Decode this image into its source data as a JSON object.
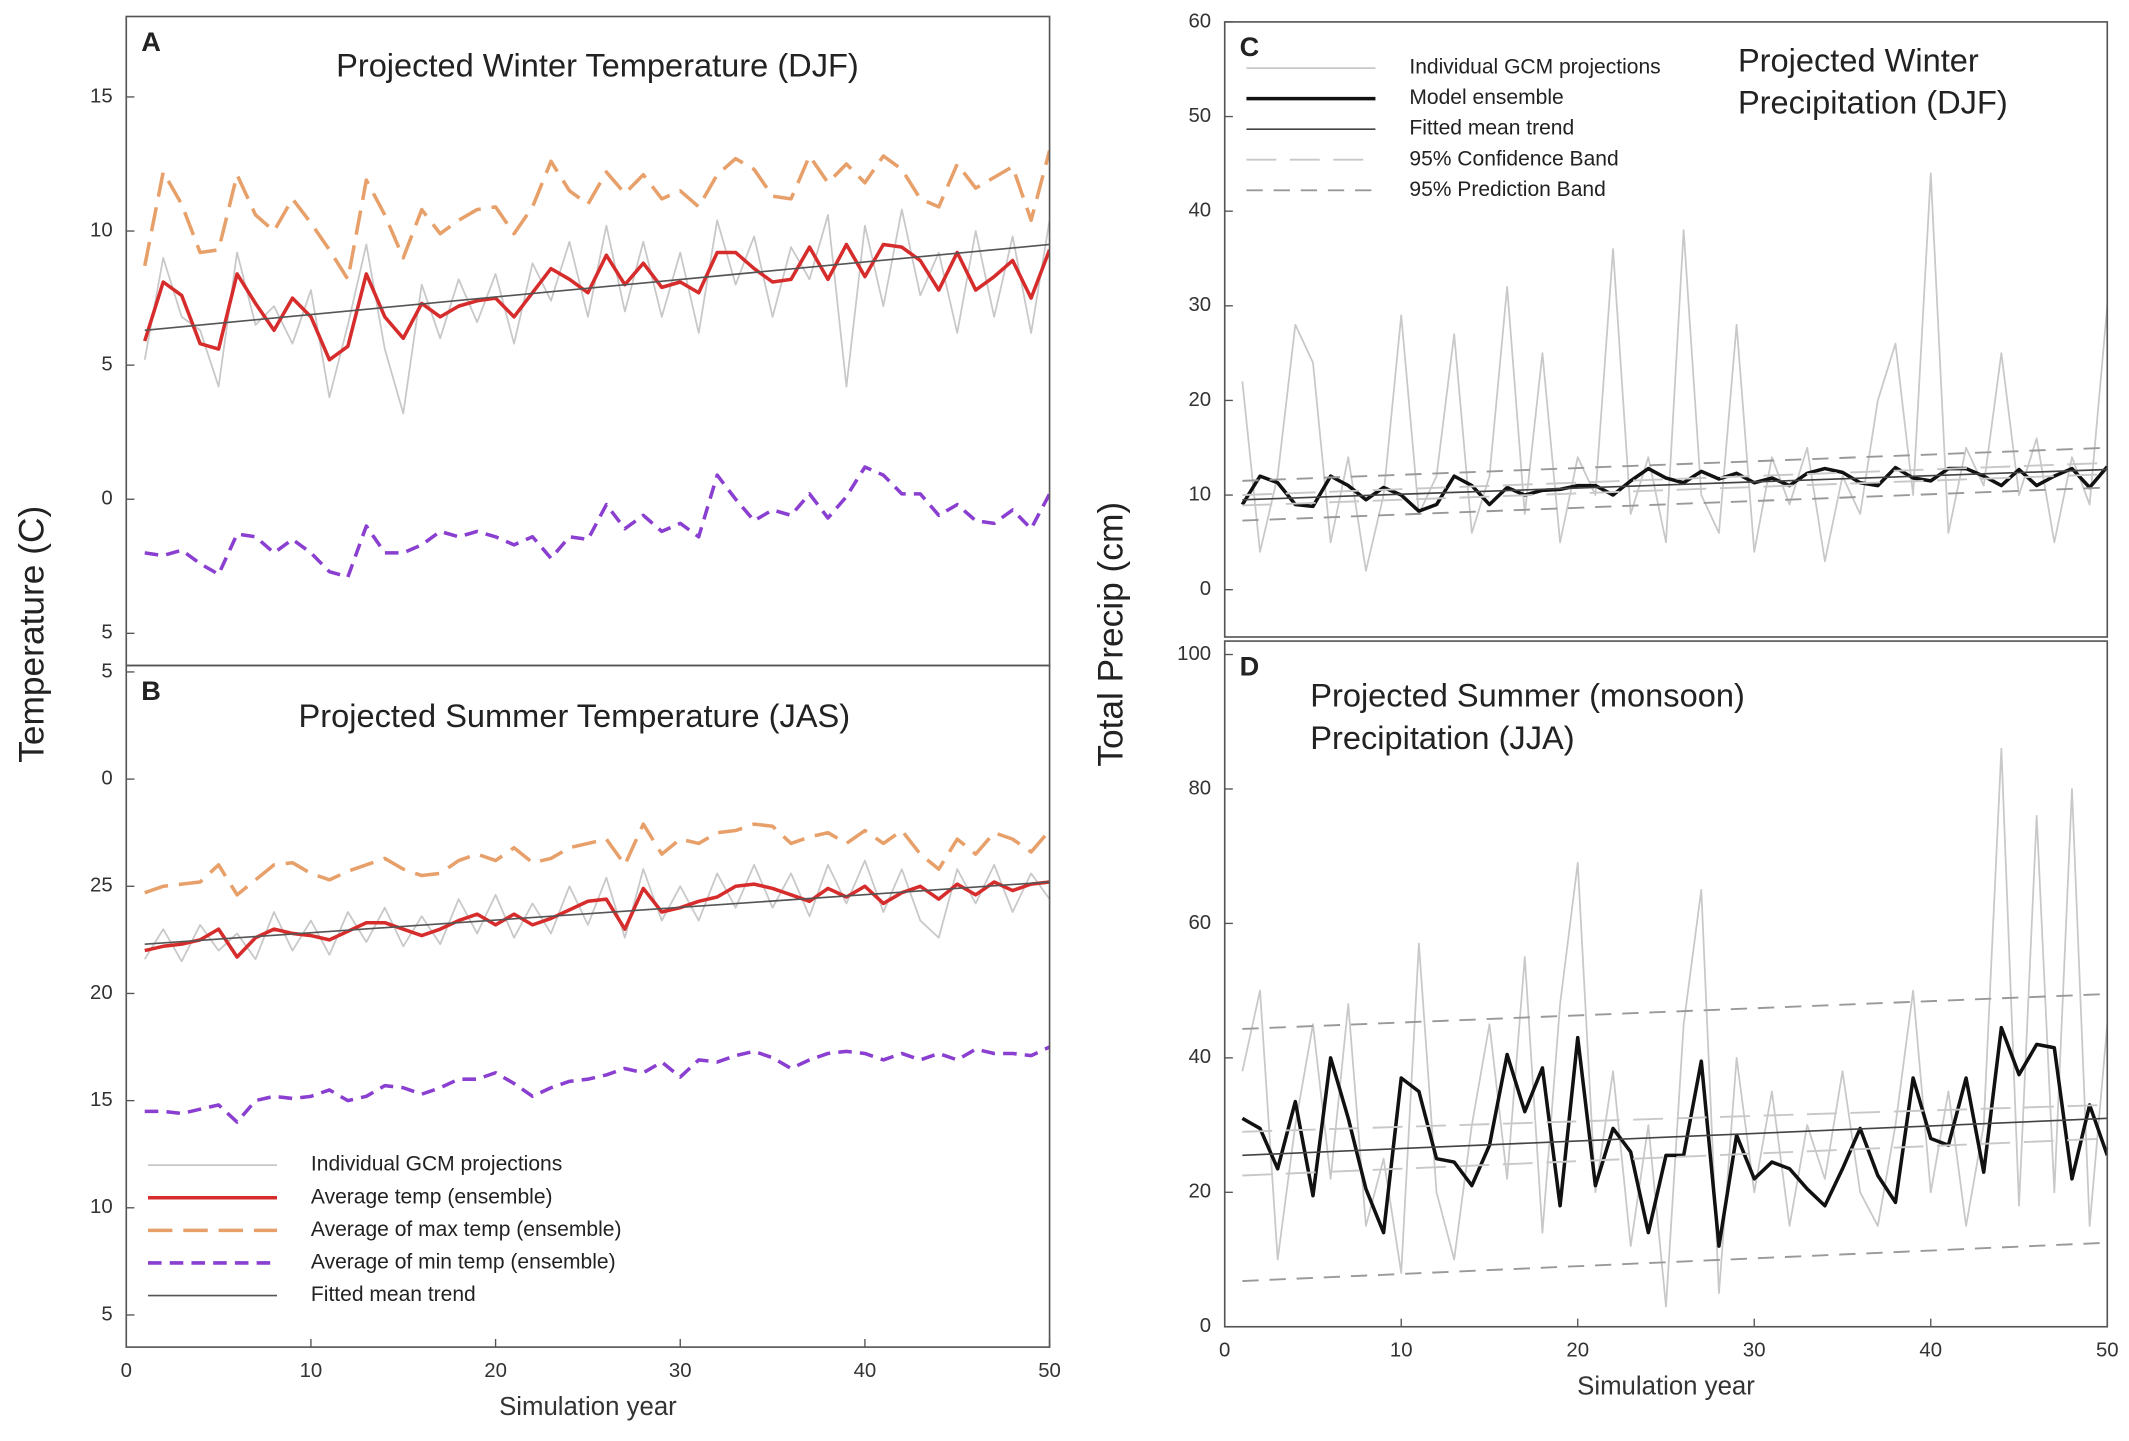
{
  "chart_data": [
    {
      "type": "line",
      "label": "A",
      "title": [
        "Projected Winter Temperature (DJF)"
      ],
      "ylabel": "Temperature (C)",
      "xlim": [
        0,
        50
      ],
      "ylim": [
        -6.2,
        18
      ],
      "yticks": [
        {
          "value": -5,
          "label": "5"
        },
        0,
        5,
        10,
        15
      ],
      "x": [
        1,
        2,
        3,
        4,
        5,
        6,
        7,
        8,
        9,
        10,
        11,
        12,
        13,
        14,
        15,
        16,
        17,
        18,
        19,
        20,
        21,
        22,
        23,
        24,
        25,
        26,
        27,
        28,
        29,
        30,
        31,
        32,
        33,
        34,
        35,
        36,
        37,
        38,
        39,
        40,
        41,
        42,
        43,
        44,
        45,
        46,
        47,
        48,
        49,
        50
      ],
      "series": [
        {
          "style": "individual",
          "color": "#c8c8c8",
          "values": [
            5.2,
            9.0,
            6.8,
            6.3,
            4.2,
            9.2,
            6.5,
            7.2,
            5.8,
            7.8,
            3.8,
            6.5,
            9.5,
            5.6,
            3.2,
            8.0,
            6.0,
            8.2,
            6.6,
            8.4,
            5.8,
            8.8,
            7.4,
            9.6,
            6.8,
            10.2,
            7.0,
            9.6,
            6.8,
            9.2,
            6.2,
            10.4,
            8.0,
            9.8,
            6.8,
            9.4,
            8.2,
            10.6,
            4.2,
            10.2,
            7.2,
            10.8,
            7.6,
            9.2,
            6.2,
            10.0,
            6.8,
            9.8,
            6.2,
            10.4
          ]
        },
        {
          "style": "ensemble",
          "color": "#d62c2c",
          "values": [
            5.9,
            8.1,
            7.6,
            5.8,
            5.6,
            8.4,
            7.3,
            6.3,
            7.5,
            6.8,
            5.2,
            5.7,
            8.4,
            6.8,
            6.0,
            7.3,
            6.8,
            7.2,
            7.4,
            7.5,
            6.8,
            7.7,
            8.6,
            8.2,
            7.7,
            9.1,
            8.0,
            8.8,
            7.9,
            8.1,
            7.7,
            9.2,
            9.2,
            8.6,
            8.1,
            8.2,
            9.4,
            8.2,
            9.5,
            8.3,
            9.5,
            9.4,
            8.9,
            7.8,
            9.2,
            7.8,
            8.3,
            8.9,
            7.5,
            9.3
          ]
        },
        {
          "style": "ensemble",
          "dash": "long",
          "color": "#e8a06a",
          "values": [
            8.7,
            12.2,
            11.0,
            9.2,
            9.3,
            12.1,
            10.6,
            10.0,
            11.2,
            10.3,
            9.3,
            8.2,
            11.9,
            10.6,
            9.0,
            10.8,
            9.9,
            10.4,
            10.8,
            10.9,
            9.9,
            10.9,
            12.6,
            11.5,
            11.0,
            12.2,
            11.4,
            12.1,
            11.2,
            11.5,
            10.9,
            12.1,
            12.7,
            12.3,
            11.3,
            11.2,
            12.8,
            11.8,
            12.5,
            11.8,
            12.8,
            12.3,
            11.2,
            10.9,
            12.5,
            11.6,
            12.0,
            12.4,
            10.4,
            13.0
          ]
        },
        {
          "style": "ensemble",
          "dash": "short",
          "color": "#8a3fd1",
          "values": [
            -2.0,
            -2.1,
            -1.9,
            -2.4,
            -2.8,
            -1.3,
            -1.4,
            -2.0,
            -1.5,
            -2.0,
            -2.7,
            -2.9,
            -1.0,
            -2.0,
            -2.0,
            -1.7,
            -1.2,
            -1.4,
            -1.2,
            -1.4,
            -1.7,
            -1.4,
            -2.2,
            -1.4,
            -1.5,
            -0.2,
            -1.1,
            -0.6,
            -1.2,
            -0.9,
            -1.4,
            0.9,
            0.0,
            -0.8,
            -0.4,
            -0.6,
            0.2,
            -0.7,
            0.1,
            1.2,
            0.9,
            0.2,
            0.2,
            -0.6,
            -0.2,
            -0.8,
            -0.9,
            -0.4,
            -1.1,
            0.2
          ]
        },
        {
          "style": "trend",
          "color": "#555555",
          "x": [
            1,
            50
          ],
          "values": [
            6.3,
            9.5
          ]
        }
      ]
    },
    {
      "type": "line",
      "label": "B",
      "title": [
        "Projected Summer Temperature (JAS)"
      ],
      "xlabel": "Simulation year",
      "xlim": [
        0,
        50
      ],
      "ylim": [
        3.5,
        35.3
      ],
      "xticks": [
        0,
        10,
        20,
        30,
        40,
        50
      ],
      "yticks": [
        5,
        10,
        15,
        20,
        25,
        {
          "value": 30,
          "label": "0"
        },
        {
          "value": 35,
          "label": "5"
        }
      ],
      "legend": "lower left",
      "x": [
        1,
        2,
        3,
        4,
        5,
        6,
        7,
        8,
        9,
        10,
        11,
        12,
        13,
        14,
        15,
        16,
        17,
        18,
        19,
        20,
        21,
        22,
        23,
        24,
        25,
        26,
        27,
        28,
        29,
        30,
        31,
        32,
        33,
        34,
        35,
        36,
        37,
        38,
        39,
        40,
        41,
        42,
        43,
        44,
        45,
        46,
        47,
        48,
        49,
        50
      ],
      "series": [
        {
          "name": "Individual GCM projections",
          "style": "individual",
          "color": "#c8c8c8",
          "values": [
            21.6,
            23.0,
            21.5,
            23.2,
            22.0,
            22.8,
            21.6,
            23.8,
            22.0,
            23.4,
            21.8,
            23.8,
            22.4,
            24.0,
            22.2,
            23.6,
            22.3,
            24.4,
            22.8,
            24.6,
            22.6,
            24.2,
            22.8,
            25.0,
            23.2,
            25.4,
            22.6,
            25.8,
            23.4,
            25.0,
            23.4,
            25.6,
            24.0,
            26.0,
            24.0,
            25.6,
            23.6,
            26.0,
            24.2,
            26.2,
            23.8,
            25.8,
            23.4,
            22.6,
            25.8,
            24.2,
            26.0,
            23.8,
            25.6,
            24.4
          ]
        },
        {
          "name": "Average temp (ensemble)",
          "style": "ensemble",
          "color": "#d62c2c",
          "values": [
            22.0,
            22.2,
            22.3,
            22.5,
            23.0,
            21.7,
            22.6,
            23.0,
            22.8,
            22.7,
            22.5,
            22.9,
            23.3,
            23.3,
            23.0,
            22.7,
            23.0,
            23.4,
            23.7,
            23.2,
            23.7,
            23.2,
            23.5,
            23.9,
            24.3,
            24.4,
            23.0,
            24.9,
            23.8,
            24.0,
            24.3,
            24.5,
            25.0,
            25.1,
            24.9,
            24.6,
            24.3,
            24.9,
            24.5,
            25.0,
            24.2,
            24.7,
            25.0,
            24.4,
            25.1,
            24.6,
            25.2,
            24.8,
            25.1,
            25.2
          ]
        },
        {
          "name": "Average of max temp (ensemble)",
          "style": "ensemble",
          "dash": "long",
          "color": "#e8a06a",
          "values": [
            24.7,
            25.0,
            25.1,
            25.2,
            26.0,
            24.6,
            25.3,
            26.0,
            26.1,
            25.6,
            25.3,
            25.7,
            26.0,
            26.3,
            25.8,
            25.5,
            25.6,
            26.2,
            26.5,
            26.2,
            26.8,
            26.1,
            26.3,
            26.8,
            27.0,
            27.2,
            26.0,
            27.9,
            26.5,
            27.2,
            27.0,
            27.5,
            27.6,
            27.9,
            27.8,
            27.0,
            27.3,
            27.5,
            27.0,
            27.6,
            27.0,
            27.6,
            26.5,
            25.8,
            27.2,
            26.5,
            27.5,
            27.2,
            26.6,
            27.6
          ]
        },
        {
          "name": "Average of min temp (ensemble)",
          "style": "ensemble",
          "dash": "short",
          "color": "#8a3fd1",
          "values": [
            14.5,
            14.5,
            14.4,
            14.6,
            14.8,
            14.0,
            15.0,
            15.2,
            15.1,
            15.2,
            15.5,
            15.0,
            15.2,
            15.7,
            15.6,
            15.3,
            15.6,
            16.0,
            16.0,
            16.3,
            15.8,
            15.2,
            15.6,
            15.9,
            16.0,
            16.2,
            16.5,
            16.3,
            16.8,
            16.1,
            16.9,
            16.8,
            17.1,
            17.3,
            17.0,
            16.5,
            16.9,
            17.2,
            17.3,
            17.2,
            16.9,
            17.2,
            16.9,
            17.2,
            16.9,
            17.4,
            17.2,
            17.2,
            17.1,
            17.5
          ]
        },
        {
          "name": "Fitted mean trend",
          "style": "trend",
          "color": "#555555",
          "x": [
            1,
            50
          ],
          "values": [
            22.3,
            25.2
          ]
        }
      ]
    },
    {
      "type": "line",
      "label": "C",
      "title": [
        "Projected Winter",
        "Precipitation (DJF)"
      ],
      "ylabel": "Total Precip (cm)",
      "xlim": [
        0,
        50
      ],
      "ylim": [
        -5,
        60
      ],
      "yticks": [
        0,
        10,
        20,
        30,
        40,
        50,
        60
      ],
      "legend": "upper left",
      "x": [
        1,
        2,
        3,
        4,
        5,
        6,
        7,
        8,
        9,
        10,
        11,
        12,
        13,
        14,
        15,
        16,
        17,
        18,
        19,
        20,
        21,
        22,
        23,
        24,
        25,
        26,
        27,
        28,
        29,
        30,
        31,
        32,
        33,
        34,
        35,
        36,
        37,
        38,
        39,
        40,
        41,
        42,
        43,
        44,
        45,
        46,
        47,
        48,
        49,
        50
      ],
      "series": [
        {
          "name": "Individual GCM projections",
          "style": "individual",
          "color": "#c8c8c8",
          "values": [
            22,
            4,
            12,
            28,
            24,
            5,
            14,
            2,
            10,
            29,
            8,
            12,
            27,
            6,
            12,
            32,
            8,
            25,
            5,
            14,
            10,
            36,
            8,
            14,
            5,
            38,
            10,
            6,
            28,
            4,
            14,
            9,
            15,
            3,
            12,
            8,
            20,
            26,
            10,
            44,
            6,
            15,
            11,
            25,
            10,
            16,
            5,
            14,
            9,
            30
          ]
        },
        {
          "name": "Model ensemble",
          "style": "ensemble",
          "color": "#111111",
          "values": [
            9.0,
            12.0,
            11.3,
            9.0,
            8.8,
            12.0,
            11.0,
            9.5,
            10.8,
            10.0,
            8.3,
            9.0,
            12.0,
            11.0,
            9.0,
            10.8,
            10.0,
            10.5,
            10.6,
            11.0,
            11.0,
            10.0,
            11.5,
            12.8,
            11.8,
            11.3,
            12.5,
            11.7,
            12.3,
            11.3,
            11.8,
            11.0,
            12.3,
            12.8,
            12.4,
            11.3,
            11.0,
            12.9,
            11.8,
            11.5,
            12.8,
            12.8,
            12.0,
            11.0,
            12.7,
            11.0,
            12.0,
            12.8,
            10.8,
            13.0
          ]
        },
        {
          "name": "Fitted mean trend",
          "style": "trend",
          "color": "#444444",
          "x": [
            1,
            50
          ],
          "values": [
            9.5,
            12.7
          ]
        },
        {
          "name": "95% Confidence Band",
          "style": "confidence",
          "color": "#c8c8c8",
          "x": [
            1,
            50
          ],
          "lower": [
            8.9,
            12.2
          ],
          "upper": [
            10.0,
            13.4
          ]
        },
        {
          "name": "95% Prediction Band",
          "style": "prediction",
          "color": "#999999",
          "x": [
            1,
            50
          ],
          "lower": [
            7.3,
            10.8
          ],
          "upper": [
            11.5,
            15.0
          ]
        }
      ]
    },
    {
      "type": "line",
      "label": "D",
      "title": [
        "Projected Summer (monsoon)",
        "Precipitation (JJA)"
      ],
      "xlabel": "Simulation year",
      "xlim": [
        0,
        50
      ],
      "ylim": [
        0,
        102
      ],
      "xticks": [
        0,
        10,
        20,
        30,
        40,
        50
      ],
      "yticks": [
        0,
        20,
        40,
        60,
        80,
        100
      ],
      "x": [
        1,
        2,
        3,
        4,
        5,
        6,
        7,
        8,
        9,
        10,
        11,
        12,
        13,
        14,
        15,
        16,
        17,
        18,
        19,
        20,
        21,
        22,
        23,
        24,
        25,
        26,
        27,
        28,
        29,
        30,
        31,
        32,
        33,
        34,
        35,
        36,
        37,
        38,
        39,
        40,
        41,
        42,
        43,
        44,
        45,
        46,
        47,
        48,
        49,
        50
      ],
      "series": [
        {
          "style": "individual",
          "color": "#c8c8c8",
          "values": [
            38,
            50,
            10,
            30,
            45,
            22,
            48,
            15,
            25,
            8,
            57,
            20,
            10,
            30,
            45,
            22,
            55,
            14,
            48,
            69,
            20,
            38,
            12,
            30,
            3,
            45,
            65,
            5,
            40,
            20,
            35,
            15,
            30,
            22,
            38,
            20,
            15,
            30,
            50,
            20,
            35,
            15,
            30,
            86,
            18,
            76,
            20,
            80,
            15,
            45
          ]
        },
        {
          "style": "ensemble",
          "color": "#111111",
          "values": [
            31,
            29.5,
            23.5,
            33.5,
            19.5,
            40,
            31,
            20.5,
            14,
            37,
            35,
            25,
            24.5,
            21,
            27,
            40.5,
            32,
            38.5,
            18,
            43,
            21,
            29.5,
            26,
            14,
            25.5,
            25.5,
            39.5,
            12,
            28.5,
            22,
            24.5,
            23.5,
            20.5,
            18,
            23.5,
            29.5,
            22.5,
            18.5,
            37,
            28,
            27,
            37,
            23,
            44.5,
            37.5,
            42,
            41.5,
            22,
            33,
            25.5
          ]
        },
        {
          "style": "trend",
          "color": "#444444",
          "x": [
            1,
            50
          ],
          "values": [
            25.5,
            31
          ]
        },
        {
          "style": "confidence",
          "color": "#c8c8c8",
          "x": [
            1,
            50
          ],
          "lower": [
            22.5,
            28
          ],
          "upper": [
            29,
            33
          ]
        },
        {
          "style": "prediction",
          "color": "#999999",
          "x": [
            1,
            50
          ],
          "lower": [
            6.8,
            12.5
          ],
          "upper": [
            44.3,
            49.5
          ]
        }
      ]
    }
  ]
}
